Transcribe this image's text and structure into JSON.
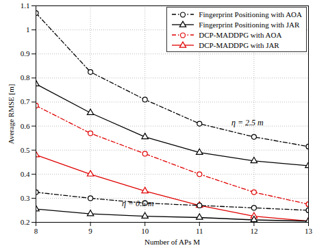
{
  "chart_data": {
    "type": "line",
    "x_label": "Number of APs M",
    "y_label": "Average RMSE [m]",
    "x": [
      8,
      9,
      10,
      11,
      12,
      13
    ],
    "xlim": [
      8,
      13
    ],
    "xticks": [
      8,
      9,
      10,
      11,
      12,
      13
    ],
    "ylim": [
      0.2,
      1.1
    ],
    "yticks": [
      0.2,
      0.3,
      0.4,
      0.5,
      0.6,
      0.7,
      0.8,
      0.9,
      1,
      1.1
    ],
    "grid": true,
    "legend": "top-right",
    "annotations": [
      "η = 2.5 m",
      "η = 0.5 m"
    ],
    "series": [
      {
        "name": "Fingerprint Positioning with AOA",
        "color": "#000000",
        "marker": "circle",
        "line_style": "dashdot",
        "values": [
          1.07,
          0.825,
          0.71,
          0.61,
          0.555,
          0.515
        ]
      },
      {
        "name": "Fingerprint Positioning with JAR",
        "color": "#000000",
        "marker": "triangle",
        "line_style": "solid",
        "values": [
          0.775,
          0.655,
          0.555,
          0.49,
          0.455,
          0.435
        ]
      },
      {
        "name": "DCP-MADDPG with AOA",
        "color": "#e00000",
        "marker": "circle",
        "line_style": "dashdot",
        "values": [
          0.685,
          0.57,
          0.485,
          0.4,
          0.325,
          0.275
        ]
      },
      {
        "name": "DCP-MADDPG with JAR",
        "color": "#e00000",
        "marker": "triangle",
        "line_style": "solid",
        "values": [
          0.48,
          0.4,
          0.33,
          0.27,
          0.225,
          0.205
        ]
      },
      {
        "name": "Fingerprint Positioning with AOA",
        "color": "#000000",
        "marker": "circle",
        "line_style": "dashdot",
        "values": [
          0.325,
          0.3,
          0.28,
          0.27,
          0.26,
          0.25
        ]
      },
      {
        "name": "Fingerprint Positioning with JAR",
        "color": "#000000",
        "marker": "triangle",
        "line_style": "solid",
        "values": [
          0.255,
          0.235,
          0.225,
          0.22,
          0.21,
          0.205
        ]
      }
    ]
  }
}
